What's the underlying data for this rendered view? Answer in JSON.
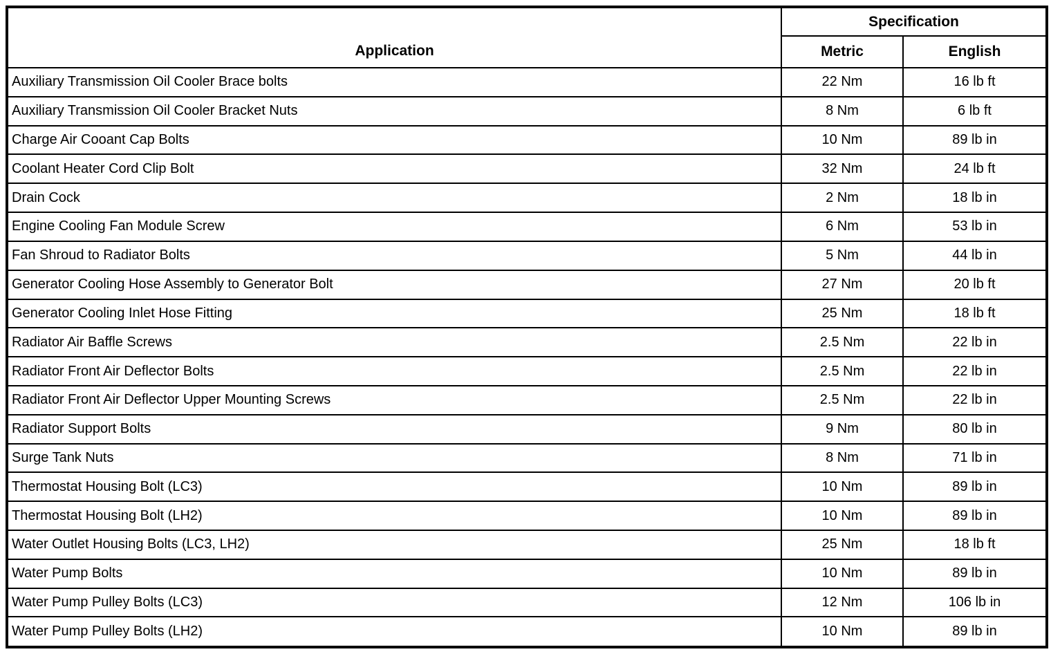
{
  "table": {
    "application_header": "Application",
    "specification_header": "Specification",
    "metric_header": "Metric",
    "english_header": "English",
    "rows": [
      {
        "application": "Auxiliary Transmission Oil Cooler Brace bolts",
        "metric": "22 Nm",
        "english": "16 lb ft"
      },
      {
        "application": "Auxiliary Transmission Oil Cooler Bracket Nuts",
        "metric": "8 Nm",
        "english": "6 lb ft"
      },
      {
        "application": "Charge Air Cooant Cap Bolts",
        "metric": "10 Nm",
        "english": "89 lb in"
      },
      {
        "application": "Coolant Heater Cord Clip Bolt",
        "metric": "32 Nm",
        "english": "24 lb ft"
      },
      {
        "application": "Drain Cock",
        "metric": "2 Nm",
        "english": "18 lb in"
      },
      {
        "application": "Engine Cooling Fan Module Screw",
        "metric": "6 Nm",
        "english": "53 lb in"
      },
      {
        "application": "Fan Shroud to Radiator Bolts",
        "metric": "5 Nm",
        "english": "44 lb in"
      },
      {
        "application": "Generator Cooling Hose Assembly to Generator Bolt",
        "metric": "27 Nm",
        "english": "20 lb ft"
      },
      {
        "application": "Generator Cooling Inlet Hose Fitting",
        "metric": "25 Nm",
        "english": "18 lb ft"
      },
      {
        "application": "Radiator Air Baffle Screws",
        "metric": "2.5 Nm",
        "english": "22 lb in"
      },
      {
        "application": "Radiator Front Air Deflector Bolts",
        "metric": "2.5 Nm",
        "english": "22 lb in"
      },
      {
        "application": "Radiator Front Air Deflector Upper Mounting Screws",
        "metric": "2.5 Nm",
        "english": "22 lb in"
      },
      {
        "application": "Radiator Support Bolts",
        "metric": "9 Nm",
        "english": "80 lb in"
      },
      {
        "application": "Surge Tank Nuts",
        "metric": "8 Nm",
        "english": "71 lb in"
      },
      {
        "application": "Thermostat Housing Bolt (LC3)",
        "metric": "10 Nm",
        "english": "89 lb in"
      },
      {
        "application": "Thermostat Housing Bolt (LH2)",
        "metric": "10 Nm",
        "english": "89 lb in"
      },
      {
        "application": "Water Outlet Housing Bolts (LC3, LH2)",
        "metric": "25 Nm",
        "english": "18 lb ft"
      },
      {
        "application": "Water Pump Bolts",
        "metric": "10 Nm",
        "english": "89 lb in"
      },
      {
        "application": "Water Pump Pulley Bolts (LC3)",
        "metric": "12 Nm",
        "english": "106 lb in"
      },
      {
        "application": "Water Pump Pulley Bolts (LH2)",
        "metric": "10 Nm",
        "english": "89 lb in"
      }
    ],
    "colors": {
      "border": "#000000",
      "text": "#000000",
      "background": "#ffffff"
    }
  }
}
